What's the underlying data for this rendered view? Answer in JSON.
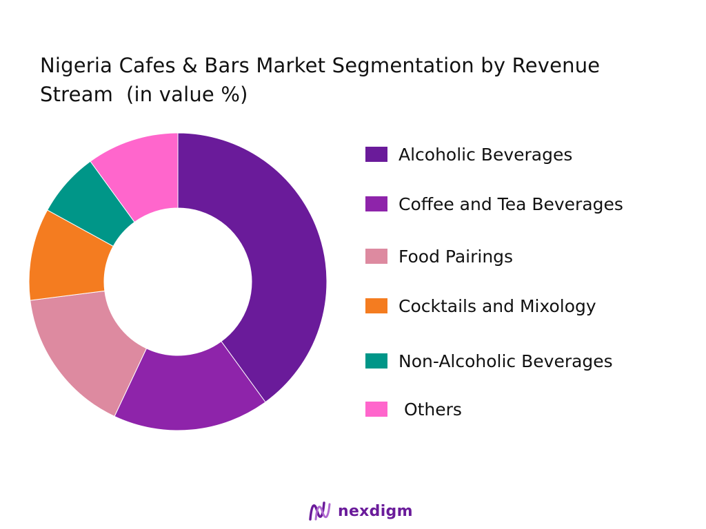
{
  "title_lines": [
    "Nigeria Cafes & Bars Market Segmentation by Revenue",
    "Stream  (in value %)"
  ],
  "chart_data": {
    "type": "pie",
    "variant": "donut",
    "title": "Nigeria Cafes & Bars Market Segmentation by Revenue Stream  (in value %)",
    "unit": "%",
    "legend_position": "right",
    "slices": [
      {
        "label": "Alcoholic Beverages",
        "value": 40,
        "color": "#6a1b9a"
      },
      {
        "label": "Coffee and Tea Beverages",
        "value": 17,
        "color": "#8e24aa"
      },
      {
        "label": "Food Pairings",
        "value": 16,
        "color": "#dd8aa0"
      },
      {
        "label": "Cocktails and Mixology",
        "value": 10,
        "color": "#f47c20"
      },
      {
        "label": "Non-Alcoholic Beverages",
        "value": 7,
        "color": "#009688"
      },
      {
        "label": " Others",
        "value": 10,
        "color": "#ff66cc"
      }
    ]
  },
  "brand": {
    "name": "nexdigm",
    "logo_icon": "nexdigm-logo-icon",
    "color": "#6a1b9a"
  }
}
